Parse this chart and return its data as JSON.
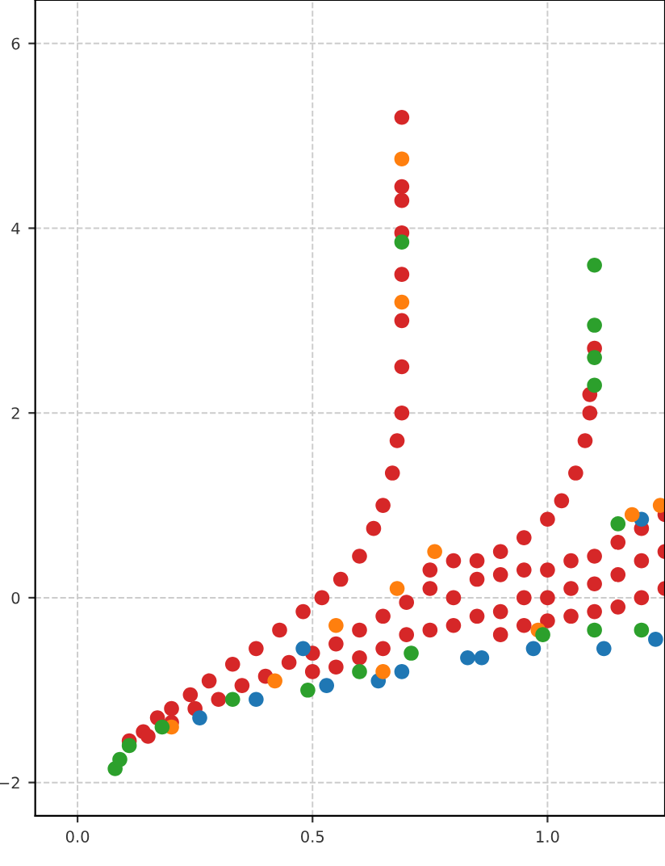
{
  "chart_data": {
    "type": "scatter",
    "xlim": [
      -0.09,
      1.25
    ],
    "ylim": [
      -2.36,
      6.47
    ],
    "xticks": [
      {
        "value": 0.0,
        "label": "0.0"
      },
      {
        "value": 0.5,
        "label": "0.5"
      },
      {
        "value": 1.0,
        "label": "1.0"
      }
    ],
    "yticks": [
      {
        "value": -2,
        "label": "−2"
      },
      {
        "value": 0,
        "label": "0"
      },
      {
        "value": 2,
        "label": "2"
      },
      {
        "value": 4,
        "label": "4"
      },
      {
        "value": 6,
        "label": "6"
      }
    ],
    "grid": true,
    "marker": "circle",
    "series": [
      {
        "color": "#d62728",
        "x": [
          0.11,
          0.14,
          0.17,
          0.2,
          0.24,
          0.28,
          0.33,
          0.38,
          0.43,
          0.48,
          0.52,
          0.56,
          0.6,
          0.63,
          0.65,
          0.67,
          0.68,
          0.69,
          0.69,
          0.69,
          0.69,
          0.69,
          0.69,
          0.69,
          0.69,
          0.85,
          0.9,
          0.95,
          1.0,
          1.03,
          1.06,
          1.08,
          1.09,
          1.09,
          1.1,
          0.15,
          0.2,
          0.25,
          0.3,
          0.35,
          0.4,
          0.45,
          0.5,
          0.5,
          0.55,
          0.55,
          0.6,
          0.6,
          0.65,
          0.65,
          0.7,
          0.7,
          0.75,
          0.75,
          0.75,
          0.8,
          0.8,
          0.8,
          0.85,
          0.85,
          0.9,
          0.9,
          0.9,
          0.95,
          0.95,
          0.95,
          1.0,
          1.0,
          1.0,
          1.05,
          1.05,
          1.05,
          1.1,
          1.1,
          1.1,
          1.15,
          1.15,
          1.15,
          1.2,
          1.2,
          1.2,
          1.25,
          1.25,
          1.25
        ],
        "values": [
          -1.55,
          -1.45,
          -1.3,
          -1.2,
          -1.05,
          -0.9,
          -0.72,
          -0.55,
          -0.35,
          -0.15,
          0.0,
          0.2,
          0.45,
          0.75,
          1.0,
          1.35,
          1.7,
          2.0,
          2.5,
          3.0,
          3.5,
          3.95,
          4.3,
          4.45,
          5.2,
          0.4,
          0.5,
          0.65,
          0.85,
          1.05,
          1.35,
          1.7,
          2.0,
          2.2,
          2.7,
          -1.5,
          -1.35,
          -1.2,
          -1.1,
          -0.95,
          -0.85,
          -0.7,
          -0.6,
          -0.8,
          -0.5,
          -0.75,
          -0.35,
          -0.65,
          -0.2,
          -0.55,
          -0.05,
          -0.4,
          0.1,
          0.3,
          -0.35,
          0.4,
          0.0,
          -0.3,
          0.2,
          -0.2,
          0.25,
          -0.15,
          -0.4,
          0.3,
          0.0,
          -0.3,
          0.3,
          0.0,
          -0.25,
          0.4,
          0.1,
          -0.2,
          0.45,
          0.15,
          -0.15,
          0.6,
          0.25,
          -0.1,
          0.75,
          0.4,
          0.0,
          0.9,
          0.5,
          0.1
        ]
      },
      {
        "color": "#1f77b4",
        "x": [
          0.26,
          0.38,
          0.48,
          0.53,
          0.64,
          0.69,
          0.83,
          0.86,
          0.97,
          1.12,
          1.23,
          1.2
        ],
        "values": [
          -1.3,
          -1.1,
          -0.55,
          -0.95,
          -0.9,
          -0.8,
          -0.65,
          -0.65,
          -0.55,
          -0.55,
          -0.45,
          0.85
        ]
      },
      {
        "color": "#ff7f0e",
        "x": [
          0.2,
          0.42,
          0.68,
          0.76,
          0.65,
          0.98,
          1.18,
          1.24,
          0.69,
          0.69,
          0.55
        ],
        "values": [
          -1.4,
          -0.9,
          0.1,
          0.5,
          -0.8,
          -0.35,
          0.9,
          1.0,
          4.75,
          3.2,
          -0.3
        ]
      },
      {
        "color": "#2ca02c",
        "x": [
          0.08,
          0.09,
          0.11,
          0.18,
          0.33,
          0.49,
          0.6,
          0.71,
          0.99,
          1.1,
          1.2,
          1.1,
          1.1,
          1.1,
          1.1,
          0.69,
          1.15
        ],
        "values": [
          -1.85,
          -1.75,
          -1.6,
          -1.4,
          -1.1,
          -1.0,
          -0.8,
          -0.6,
          -0.4,
          -0.35,
          -0.35,
          3.6,
          2.95,
          2.6,
          2.3,
          3.85,
          0.8
        ]
      }
    ]
  }
}
